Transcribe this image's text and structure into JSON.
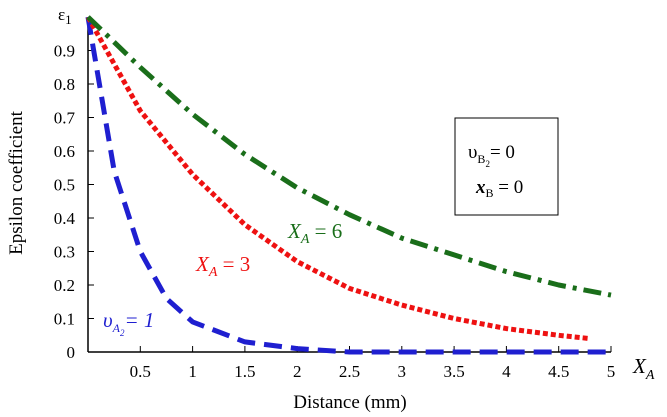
{
  "chart_data": {
    "type": "line",
    "title": "",
    "xlabel": "Distance (mm)",
    "ylabel": "Epsilon coefficient",
    "y_axis_symbol": "ε",
    "y_axis_symbol_sub": "1",
    "x_axis_symbol": "X",
    "x_axis_symbol_sub": "A",
    "xlim": [
      0,
      5
    ],
    "ylim": [
      0,
      1
    ],
    "x_ticks": [
      0.5,
      1,
      1.5,
      2,
      2.5,
      3,
      3.5,
      4,
      4.5,
      5
    ],
    "x_tick_labels": [
      "0.5",
      "1",
      "1.5",
      "2",
      "2.5",
      "3",
      "3.5",
      "4",
      "4.5",
      "5"
    ],
    "y_ticks": [
      0,
      0.1,
      0.2,
      0.3,
      0.4,
      0.5,
      0.6,
      0.7,
      0.8,
      0.9
    ],
    "y_tick_labels": [
      "0",
      "0.1",
      "0.2",
      "0.3",
      "0.4",
      "0.5",
      "0.6",
      "0.7",
      "0.8",
      "0.9"
    ],
    "grid": false,
    "series": [
      {
        "label": "υA2 = 1",
        "color": "#1f1fd0",
        "style": "dashed",
        "x": [
          0,
          0.25,
          0.5,
          0.75,
          1,
          1.5,
          2,
          2.5,
          3,
          3.5,
          4,
          4.5,
          5
        ],
        "y": [
          1.0,
          0.54,
          0.3,
          0.16,
          0.09,
          0.03,
          0.01,
          0.0,
          0.0,
          0.0,
          0.0,
          0.0,
          0.0
        ]
      },
      {
        "label": "XA = 3",
        "color": "#ee1111",
        "style": "dotted",
        "x": [
          0,
          0.5,
          1,
          1.5,
          2,
          2.5,
          3,
          3.5,
          4,
          4.5,
          4.8
        ],
        "y": [
          1.0,
          0.72,
          0.53,
          0.38,
          0.27,
          0.19,
          0.14,
          0.1,
          0.07,
          0.05,
          0.04
        ]
      },
      {
        "label": "XA = 6",
        "color": "#1a6e1a",
        "style": "dashdot",
        "x": [
          0,
          0.5,
          1,
          1.5,
          2,
          2.5,
          3,
          3.5,
          4,
          4.5,
          5
        ],
        "y": [
          1.0,
          0.85,
          0.71,
          0.59,
          0.49,
          0.41,
          0.34,
          0.29,
          0.24,
          0.2,
          0.17
        ]
      }
    ],
    "annotations": {
      "xa6": {
        "prefix": "X",
        "sub": "A",
        "rest": " = 6"
      },
      "xa3": {
        "prefix": "X",
        "sub": "A",
        "rest": " = 3"
      },
      "upsilon": {
        "prefix": "υ",
        "sub": "A",
        "subsub": "2",
        "rest": "= 1"
      }
    },
    "legend_box": {
      "line1": {
        "prefix": "υ",
        "sub": "B",
        "subsub": "2",
        "rest": "= 0"
      },
      "line2": {
        "prefix": "x",
        "sub": "B",
        "rest": " = 0"
      }
    }
  }
}
